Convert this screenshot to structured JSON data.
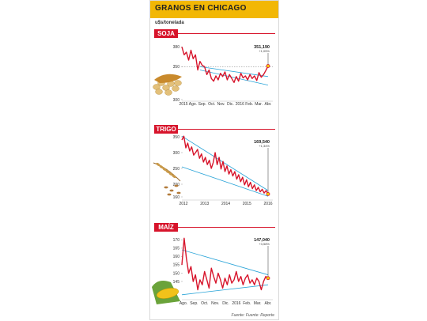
{
  "header": {
    "title": "GRANOS EN CHICAGO",
    "unit": "u$s/tonelada",
    "color": "#f2b705"
  },
  "source": "Fuente: Fuente: Reporte",
  "colors": {
    "line": "#d7142b",
    "trend": "#2aa4d8",
    "tag": "#d7142b"
  },
  "chart_data": [
    {
      "name": "SOJA",
      "type": "line",
      "x_ticks": [
        "2015",
        "Ago.",
        "Sep.",
        "Oct.",
        "Nov.",
        "Dic.",
        "2016",
        "Feb.",
        "Mar.",
        "Abr."
      ],
      "y_ticks": [
        "300",
        "350",
        "380"
      ],
      "callout": {
        "value": "351,190",
        "sub": "+1,05%"
      },
      "icon": "soybeans-icon",
      "values": [
        380,
        368,
        372,
        360,
        375,
        362,
        368,
        345,
        358,
        352,
        350,
        338,
        345,
        332,
        328,
        336,
        330,
        340,
        335,
        342,
        330,
        338,
        332,
        326,
        335,
        328,
        340,
        333,
        336,
        330,
        338,
        332,
        336,
        329,
        341,
        334,
        338,
        344,
        351
      ]
    },
    {
      "name": "TRIGO",
      "type": "line",
      "x_ticks": [
        "2012",
        "2013",
        "2014",
        "2015",
        "2016"
      ],
      "y_ticks": [
        "160",
        "200",
        "250",
        "300",
        "350"
      ],
      "callout": {
        "value": "169,540",
        "sub": "+1,34%"
      },
      "icon": "wheat-icon",
      "values": [
        340,
        352,
        315,
        330,
        305,
        318,
        292,
        300,
        310,
        282,
        296,
        270,
        285,
        262,
        276,
        250,
        268,
        300,
        262,
        285,
        248,
        272,
        240,
        258,
        232,
        246,
        226,
        240,
        216,
        230,
        208,
        222,
        198,
        214,
        192,
        206,
        186,
        198,
        180,
        190,
        176,
        184,
        172,
        180,
        169
      ]
    },
    {
      "name": "MAÍZ",
      "type": "line",
      "x_ticks": [
        "Ago.",
        "Sep.",
        "Oct.",
        "Nov.",
        "Dic.",
        "2016",
        "Feb.",
        "Mar.",
        "Abr."
      ],
      "y_ticks": [
        "145",
        "150",
        "155",
        "160",
        "165",
        "170"
      ],
      "callout": {
        "value": "147,040",
        "sub": "+3,58%"
      },
      "icon": "corn-icon",
      "values": [
        155,
        171,
        159,
        150,
        154,
        145,
        149,
        140,
        146,
        143,
        151,
        146,
        141,
        153,
        148,
        144,
        150,
        146,
        141,
        147,
        143,
        149,
        144,
        146,
        151,
        145,
        148,
        143,
        147,
        149,
        144,
        146,
        143,
        147,
        145,
        140,
        145,
        148,
        147
      ]
    }
  ]
}
